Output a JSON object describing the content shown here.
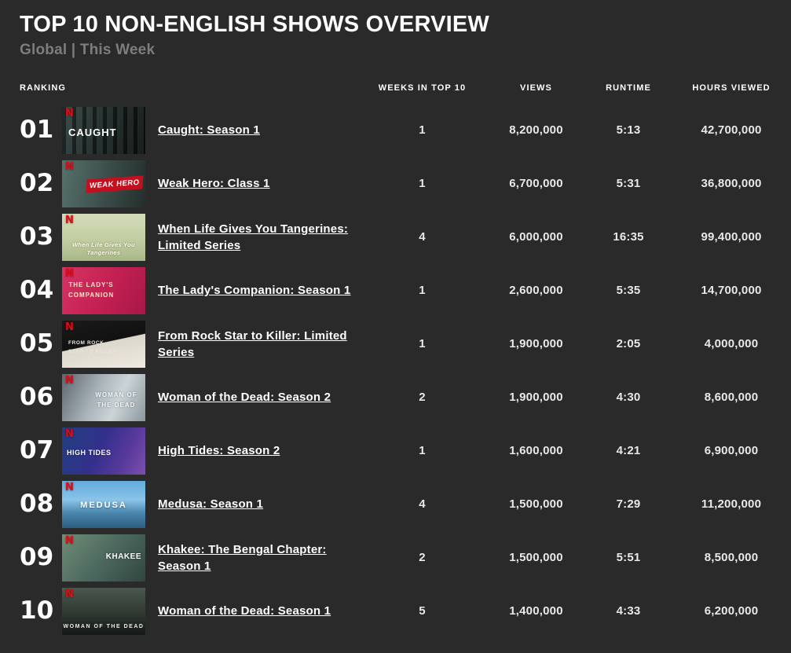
{
  "page": {
    "title": "TOP 10 NON-ENGLISH SHOWS OVERVIEW",
    "subtitle": "Global | This Week"
  },
  "colors": {
    "background": "#2a2a2a",
    "netflix_red": "#e50914",
    "subtitle_gray": "#7d7d7d",
    "text_white": "#ffffff"
  },
  "icons": {
    "netflix_n": "N"
  },
  "table": {
    "headers": {
      "ranking": "RANKING",
      "weeks": "WEEKS IN TOP 10",
      "views": "VIEWS",
      "runtime": "RUNTIME",
      "hours": "HOURS VIEWED"
    },
    "rows": [
      {
        "rank": "01",
        "title": "Caught: Season 1",
        "art_text": "CAUGHT",
        "weeks": "1",
        "views": "8,200,000",
        "runtime": "5:13",
        "hours": "42,700,000"
      },
      {
        "rank": "02",
        "title": "Weak Hero: Class 1",
        "art_text": "WEAK HERO",
        "weeks": "1",
        "views": "6,700,000",
        "runtime": "5:31",
        "hours": "36,800,000"
      },
      {
        "rank": "03",
        "title": "When Life Gives You Tangerines: Limited Series",
        "art_text": "When Life Gives You Tangerines",
        "weeks": "4",
        "views": "6,000,000",
        "runtime": "16:35",
        "hours": "99,400,000"
      },
      {
        "rank": "04",
        "title": "The Lady's Companion: Season 1",
        "art_text": "THE LADY'S COMPANION",
        "weeks": "1",
        "views": "2,600,000",
        "runtime": "5:35",
        "hours": "14,700,000"
      },
      {
        "rank": "05",
        "title": "From Rock Star to Killer: Limited Series",
        "art_text": "FROM ROCK STAR TO KILLER",
        "weeks": "1",
        "views": "1,900,000",
        "runtime": "2:05",
        "hours": "4,000,000"
      },
      {
        "rank": "06",
        "title": "Woman of the Dead: Season 2",
        "art_text": "WOMAN OF THE DEAD",
        "weeks": "2",
        "views": "1,900,000",
        "runtime": "4:30",
        "hours": "8,600,000"
      },
      {
        "rank": "07",
        "title": "High Tides: Season 2",
        "art_text": "HIGH TIDES",
        "weeks": "1",
        "views": "1,600,000",
        "runtime": "4:21",
        "hours": "6,900,000"
      },
      {
        "rank": "08",
        "title": "Medusa: Season 1",
        "art_text": "MEDUSA",
        "weeks": "4",
        "views": "1,500,000",
        "runtime": "7:29",
        "hours": "11,200,000"
      },
      {
        "rank": "09",
        "title": "Khakee: The Bengal Chapter: Season 1",
        "art_text": "KHAKEE",
        "weeks": "2",
        "views": "1,500,000",
        "runtime": "5:51",
        "hours": "8,500,000"
      },
      {
        "rank": "10",
        "title": "Woman of the Dead: Season 1",
        "art_text": "WOMAN OF THE DEAD",
        "weeks": "5",
        "views": "1,400,000",
        "runtime": "4:33",
        "hours": "6,200,000"
      }
    ]
  }
}
